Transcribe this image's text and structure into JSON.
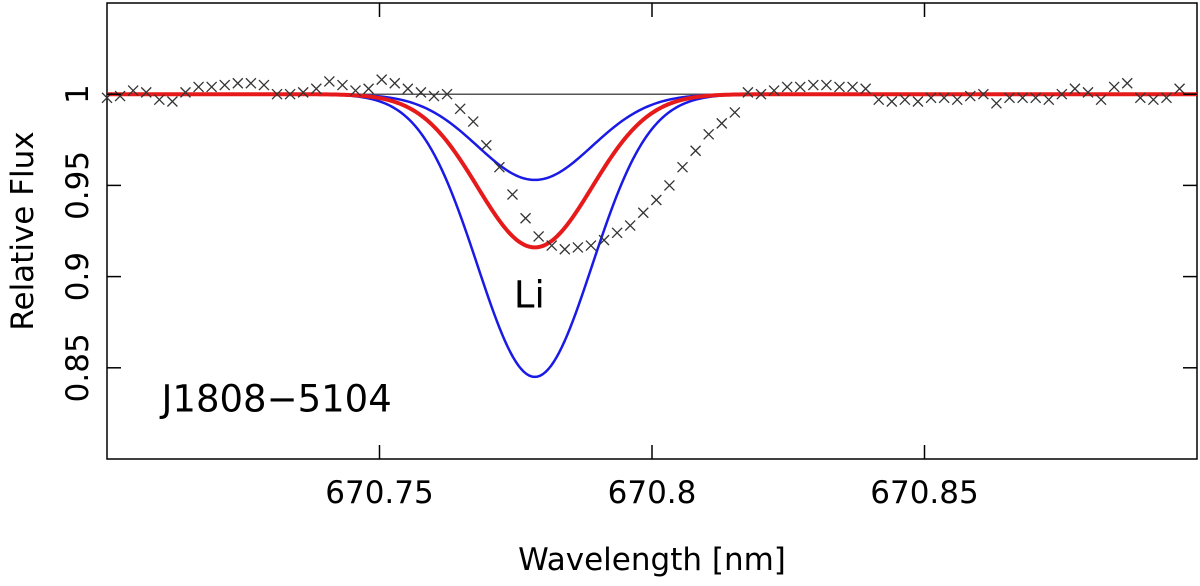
{
  "chart_data": {
    "type": "line",
    "xlabel": "Wavelength [nm]",
    "ylabel": "Relative Flux",
    "xlim": [
      670.7,
      670.9
    ],
    "ylim": [
      0.8,
      1.05
    ],
    "x_ticks": [
      {
        "value": 670.75,
        "label": "670.75"
      },
      {
        "value": 670.8,
        "label": "670.8"
      },
      {
        "value": 670.85,
        "label": "670.85"
      }
    ],
    "y_ticks": [
      {
        "value": 0.85,
        "label": "0.85"
      },
      {
        "value": 0.9,
        "label": "0.9"
      },
      {
        "value": 0.95,
        "label": "0.95"
      },
      {
        "value": 1.0,
        "label": "1"
      }
    ],
    "reference_line": {
      "y": 1.0,
      "color": "#555555"
    },
    "annotations": {
      "star": {
        "text": "J1808−5104",
        "x": 670.71,
        "y": 0.826
      },
      "line": {
        "text": "Li",
        "x": 670.7775,
        "y": 0.883
      }
    },
    "line_center": 670.7785,
    "series": [
      {
        "name": "model low",
        "color": "#1a1ae6",
        "depth": 0.047,
        "sigma": 0.0105,
        "width": 2.5
      },
      {
        "name": "model high",
        "color": "#1a1ae6",
        "depth": 0.155,
        "sigma": 0.0105,
        "width": 2.5
      },
      {
        "name": "best fit",
        "color": "#e61a1a",
        "depth": 0.084,
        "sigma": 0.0105,
        "width": 4
      }
    ],
    "observed": {
      "name": "observed",
      "marker": "x",
      "color": "#333333",
      "x": [
        670.7,
        670.7024,
        670.7048,
        670.7072,
        670.7096,
        670.712,
        670.7144,
        670.7168,
        670.7192,
        670.7216,
        670.724,
        670.7264,
        670.7288,
        670.7312,
        670.7336,
        670.736,
        670.7384,
        670.7408,
        670.7432,
        670.7456,
        670.748,
        670.7504,
        670.7528,
        670.7552,
        670.7576,
        670.76,
        670.7624,
        670.7648,
        670.7672,
        670.7696,
        670.772,
        670.7744,
        670.7768,
        670.7792,
        670.7816,
        670.784,
        670.7864,
        670.7888,
        670.7912,
        670.7936,
        670.796,
        670.7984,
        670.8008,
        670.8032,
        670.8056,
        670.808,
        670.8104,
        670.8128,
        670.8152,
        670.8176,
        670.82,
        670.8224,
        670.8248,
        670.8272,
        670.8296,
        670.832,
        670.8344,
        670.8368,
        670.8392,
        670.8416,
        670.844,
        670.8464,
        670.8488,
        670.8512,
        670.8536,
        670.856,
        670.8584,
        670.8608,
        670.8632,
        670.8656,
        670.868,
        670.8704,
        670.8728,
        670.8752,
        670.8776,
        670.88,
        670.8824,
        670.8848,
        670.8872,
        670.8896,
        670.892,
        670.8944,
        670.8968
      ],
      "y": [
        0.998,
        0.999,
        1.002,
        1.001,
        0.997,
        0.996,
        1.001,
        1.004,
        1.004,
        1.005,
        1.006,
        1.006,
        1.005,
        1.0,
        1.0,
        1.001,
        1.003,
        1.007,
        1.005,
        1.002,
        1.003,
        1.008,
        1.006,
        1.003,
        1.001,
        0.999,
        1.0,
        0.992,
        0.985,
        0.972,
        0.96,
        0.945,
        0.932,
        0.922,
        0.917,
        0.915,
        0.916,
        0.917,
        0.92,
        0.924,
        0.928,
        0.935,
        0.942,
        0.95,
        0.96,
        0.969,
        0.978,
        0.984,
        0.99,
        1.001,
        1.0,
        1.002,
        1.004,
        1.004,
        1.005,
        1.005,
        1.004,
        1.004,
        1.003,
        0.997,
        0.996,
        0.997,
        0.996,
        0.998,
        0.998,
        0.997,
        0.999,
        1.0,
        0.995,
        0.998,
        0.998,
        0.998,
        0.997,
        1.0,
        1.003,
        1.001,
        0.997,
        1.004,
        1.006,
        0.998,
        0.997,
        0.998,
        1.003
      ]
    }
  }
}
